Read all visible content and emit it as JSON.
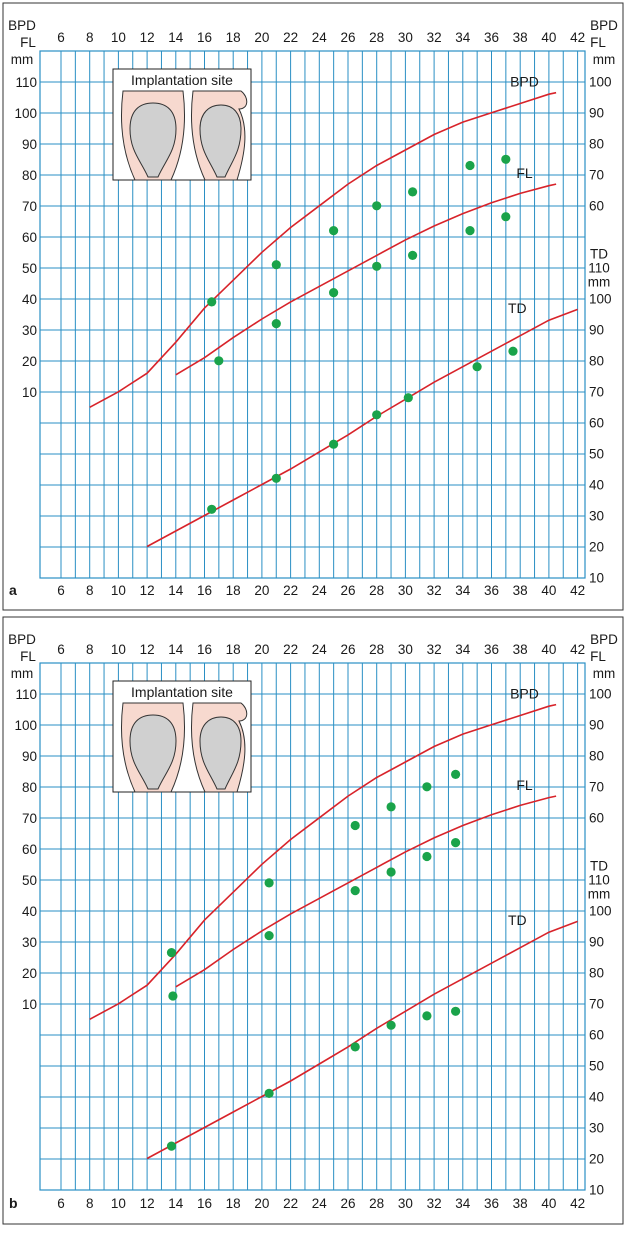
{
  "chart_data": [
    {
      "type": "scatter",
      "panel_label": "a",
      "inset_title": "Implantation site",
      "x_ticks": [
        6,
        8,
        10,
        12,
        14,
        16,
        18,
        20,
        22,
        24,
        26,
        28,
        30,
        32,
        34,
        36,
        38,
        40,
        42
      ],
      "left_axis_title": [
        "BPD",
        "FL",
        "mm"
      ],
      "left_ticks": [
        10,
        20,
        30,
        40,
        50,
        60,
        70,
        80,
        90,
        100,
        110
      ],
      "right_axis_title_top": [
        "BPD",
        "FL",
        "mm"
      ],
      "right_ticks_upper": [
        60,
        70,
        80,
        90,
        100
      ],
      "right_axis_title_mid": [
        "TD",
        "110",
        "mm"
      ],
      "right_ticks_lower": [
        10,
        20,
        30,
        40,
        50,
        60,
        70,
        80,
        90,
        100
      ],
      "series": [
        {
          "name": "BPD",
          "scale": "left",
          "curve": [
            [
              8,
              5
            ],
            [
              10,
              10
            ],
            [
              12,
              16
            ],
            [
              14,
              26
            ],
            [
              16,
              37
            ],
            [
              18,
              46
            ],
            [
              20,
              55
            ],
            [
              22,
              63
            ],
            [
              24,
              70
            ],
            [
              26,
              77
            ],
            [
              28,
              83
            ],
            [
              30,
              88
            ],
            [
              32,
              93
            ],
            [
              34,
              97
            ],
            [
              36,
              100
            ],
            [
              38,
              103
            ],
            [
              40,
              106
            ],
            [
              40.5,
              106.5
            ]
          ],
          "points": [
            [
              16.5,
              39
            ],
            [
              21,
              51
            ],
            [
              25,
              62
            ],
            [
              28,
              70
            ],
            [
              30.5,
              74.5
            ],
            [
              34.5,
              83
            ],
            [
              37,
              85
            ]
          ]
        },
        {
          "name": "FL",
          "scale": "left",
          "curve": [
            [
              14,
              15.5
            ],
            [
              16,
              21
            ],
            [
              18,
              27.5
            ],
            [
              20,
              33.5
            ],
            [
              22,
              39
            ],
            [
              24,
              44
            ],
            [
              26,
              49
            ],
            [
              28,
              54
            ],
            [
              30,
              59
            ],
            [
              32,
              63.5
            ],
            [
              34,
              67.5
            ],
            [
              36,
              71
            ],
            [
              38,
              74
            ],
            [
              40,
              76.5
            ],
            [
              40.5,
              77
            ]
          ],
          "points": [
            [
              17,
              20
            ],
            [
              21,
              32
            ],
            [
              25,
              42
            ],
            [
              28,
              50.5
            ],
            [
              30.5,
              54
            ],
            [
              34.5,
              62
            ],
            [
              37,
              66.5
            ]
          ]
        },
        {
          "name": "TD",
          "scale": "right_lower",
          "curve": [
            [
              12,
              20
            ],
            [
              14,
              25
            ],
            [
              16,
              30
            ],
            [
              18,
              35
            ],
            [
              20,
              40
            ],
            [
              22,
              45
            ],
            [
              24,
              50.5
            ],
            [
              26,
              56
            ],
            [
              28,
              62
            ],
            [
              30,
              67.5
            ],
            [
              32,
              73
            ],
            [
              34,
              78
            ],
            [
              36,
              83
            ],
            [
              38,
              88
            ],
            [
              40,
              93
            ],
            [
              42,
              96.5
            ]
          ],
          "points": [
            [
              16.5,
              32
            ],
            [
              21,
              42
            ],
            [
              25,
              53
            ],
            [
              28,
              62.5
            ],
            [
              30.2,
              68
            ],
            [
              35,
              78
            ],
            [
              37.5,
              83
            ]
          ]
        }
      ]
    },
    {
      "type": "scatter",
      "panel_label": "b",
      "inset_title": "Implantation site",
      "x_ticks": [
        6,
        8,
        10,
        12,
        14,
        16,
        18,
        20,
        22,
        24,
        26,
        28,
        30,
        32,
        34,
        36,
        38,
        40,
        42
      ],
      "left_axis_title": [
        "BPD",
        "FL",
        "mm"
      ],
      "left_ticks": [
        10,
        20,
        30,
        40,
        50,
        60,
        70,
        80,
        90,
        100,
        110
      ],
      "right_axis_title_top": [
        "BPD",
        "FL",
        "mm"
      ],
      "right_ticks_upper": [
        60,
        70,
        80,
        90,
        100
      ],
      "right_axis_title_mid": [
        "TD",
        "110",
        "mm"
      ],
      "right_ticks_lower": [
        10,
        20,
        30,
        40,
        50,
        60,
        70,
        80,
        90,
        100
      ],
      "series": [
        {
          "name": "BPD",
          "scale": "left",
          "curve": [
            [
              8,
              5
            ],
            [
              10,
              10
            ],
            [
              12,
              16
            ],
            [
              14,
              26
            ],
            [
              16,
              37
            ],
            [
              18,
              46
            ],
            [
              20,
              55
            ],
            [
              22,
              63
            ],
            [
              24,
              70
            ],
            [
              26,
              77
            ],
            [
              28,
              83
            ],
            [
              30,
              88
            ],
            [
              32,
              93
            ],
            [
              34,
              97
            ],
            [
              36,
              100
            ],
            [
              38,
              103
            ],
            [
              40,
              106
            ],
            [
              40.5,
              106.5
            ]
          ],
          "points": [
            [
              13.7,
              26.5
            ],
            [
              20.5,
              49
            ],
            [
              26.5,
              67.5
            ],
            [
              29,
              73.5
            ],
            [
              31.5,
              80
            ],
            [
              33.5,
              84
            ]
          ]
        },
        {
          "name": "FL",
          "scale": "left",
          "curve": [
            [
              14,
              15.5
            ],
            [
              16,
              21
            ],
            [
              18,
              27.5
            ],
            [
              20,
              33.5
            ],
            [
              22,
              39
            ],
            [
              24,
              44
            ],
            [
              26,
              49
            ],
            [
              28,
              54
            ],
            [
              30,
              59
            ],
            [
              32,
              63.5
            ],
            [
              34,
              67.5
            ],
            [
              36,
              71
            ],
            [
              38,
              74
            ],
            [
              40,
              76.5
            ],
            [
              40.5,
              77
            ]
          ],
          "points": [
            [
              13.8,
              12.5
            ],
            [
              20.5,
              32
            ],
            [
              26.5,
              46.5
            ],
            [
              29,
              52.5
            ],
            [
              31.5,
              57.5
            ],
            [
              33.5,
              62
            ]
          ]
        },
        {
          "name": "TD",
          "scale": "right_lower",
          "curve": [
            [
              12,
              20
            ],
            [
              14,
              25
            ],
            [
              16,
              30
            ],
            [
              18,
              35
            ],
            [
              20,
              40
            ],
            [
              22,
              45
            ],
            [
              24,
              50.5
            ],
            [
              26,
              56
            ],
            [
              28,
              62
            ],
            [
              30,
              67.5
            ],
            [
              32,
              73
            ],
            [
              34,
              78
            ],
            [
              36,
              83
            ],
            [
              38,
              88
            ],
            [
              40,
              93
            ],
            [
              42,
              96.5
            ]
          ],
          "points": [
            [
              13.7,
              24
            ],
            [
              20.5,
              41
            ],
            [
              26.5,
              56
            ],
            [
              29,
              63
            ],
            [
              31.5,
              66
            ],
            [
              33.5,
              67.5
            ]
          ]
        }
      ]
    }
  ],
  "colors": {
    "grid": "#2a8fc4",
    "curve": "#d8232a",
    "points": "#1aa34a",
    "skin": "#f7d9cf",
    "sac": "#d0d0d0"
  }
}
